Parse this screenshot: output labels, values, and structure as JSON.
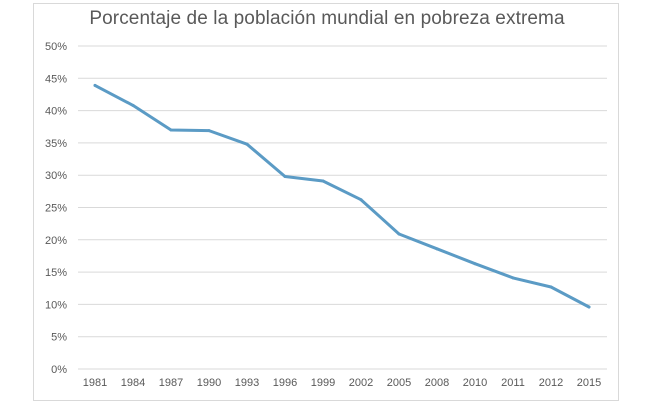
{
  "chart_data": {
    "type": "line",
    "title": "Porcentaje de la población mundial en pobreza extrema",
    "xlabel": "",
    "ylabel": "",
    "categories": [
      "1981",
      "1984",
      "1987",
      "1990",
      "1993",
      "1996",
      "1999",
      "2002",
      "2005",
      "2008",
      "2010",
      "2011",
      "2012",
      "2015"
    ],
    "series": [
      {
        "name": "Pobreza extrema",
        "values": [
          43.9,
          40.8,
          37.0,
          36.9,
          34.8,
          29.8,
          29.1,
          26.2,
          20.9,
          18.6,
          16.3,
          14.1,
          12.7,
          9.6
        ]
      }
    ],
    "ylim": [
      0,
      50
    ],
    "yticks": [
      "0%",
      "5%",
      "10%",
      "15%",
      "20%",
      "25%",
      "30%",
      "35%",
      "40%",
      "45%",
      "50%"
    ],
    "grid": true,
    "legend": "none",
    "colors": {
      "line": "#5b9bc5",
      "grid": "#d9d9d9",
      "text": "#595959"
    }
  }
}
